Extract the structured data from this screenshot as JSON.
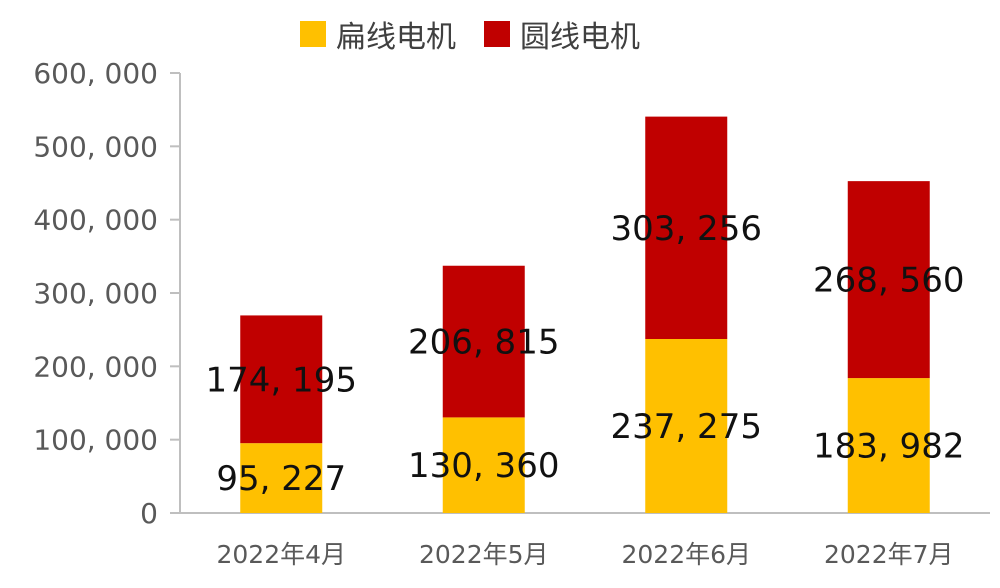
{
  "chart_data": {
    "type": "bar",
    "stacked": true,
    "categories": [
      "2022年4月",
      "2022年5月",
      "2022年6月",
      "2022年7月"
    ],
    "series": [
      {
        "name": "扁线电机",
        "color": "#FFC000",
        "values": [
          95227,
          130360,
          237275,
          183982
        ],
        "labels": [
          "95, 227",
          "130, 360",
          "237, 275",
          "183, 982"
        ]
      },
      {
        "name": "圆线电机",
        "color": "#C00000",
        "values": [
          174195,
          206815,
          303256,
          268560
        ],
        "labels": [
          "174, 195",
          "206, 815",
          "303, 256",
          "268, 560"
        ]
      }
    ],
    "yticks": [
      "0",
      "100, 000",
      "200, 000",
      "300, 000",
      "400, 000",
      "500, 000",
      "600, 000"
    ],
    "ylim": [
      0,
      600000
    ],
    "grid": false,
    "legend_position": "top"
  }
}
